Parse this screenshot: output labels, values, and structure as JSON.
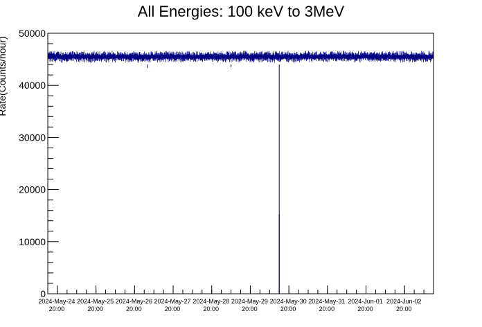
{
  "chart_data": {
    "type": "line",
    "title": "All Energies:  100 keV to 3MeV",
    "ylabel": "Rate(Counts/hour)",
    "xlabel": "",
    "ylim": [
      0,
      50000
    ],
    "yticks": [
      0,
      10000,
      20000,
      30000,
      40000,
      50000
    ],
    "xlim": [
      "2024-05-24 14:00",
      "2024-06-03 14:00"
    ],
    "xticks": [
      {
        "line1": "2024-May-24",
        "line2": "20:00"
      },
      {
        "line1": "2024-May-25",
        "line2": "20:00"
      },
      {
        "line1": "2024-May-26",
        "line2": "20:00"
      },
      {
        "line1": "2024-May-27",
        "line2": "20:00"
      },
      {
        "line1": "2024-May-28",
        "line2": "20:00"
      },
      {
        "line1": "2024-May-29",
        "line2": "20:00"
      },
      {
        "line1": "2024-May-30",
        "line2": "20:00"
      },
      {
        "line1": "2024-May-31",
        "line2": "20:00"
      },
      {
        "line1": "2024-Jun-01",
        "line2": "20:00"
      },
      {
        "line1": "2024-Jun-02",
        "line2": "20:00"
      }
    ],
    "grid": false,
    "series": [
      {
        "color": "#000080",
        "baseline": 45500,
        "band_low": 44000,
        "band_high": 47000,
        "x": [
          "2024-05-24 14:00",
          "2024-05-25 20:00",
          "2024-05-26 20:00",
          "2024-05-27 04:00",
          "2024-05-27 20:00",
          "2024-05-28 20:00",
          "2024-05-29 08:00",
          "2024-05-29 20:00",
          "2024-05-30 20:00",
          "2024-05-31 20:00",
          "2024-06-01 20:00",
          "2024-06-02 20:00",
          "2024-06-03 14:00"
        ],
        "y": [
          45500,
          45600,
          45400,
          45200,
          45500,
          45700,
          45300,
          45500,
          45400,
          45600,
          45500,
          45400,
          45500
        ],
        "dips": [
          {
            "x": "2024-05-27 04:00",
            "y": 43300
          },
          {
            "x": "2024-05-29 08:00",
            "y": 43500
          },
          {
            "x": "2024-05-30 14:00",
            "y": 0
          }
        ],
        "spikes": [
          {
            "x": "2024-05-30 14:00",
            "y": 15300
          }
        ]
      }
    ]
  }
}
